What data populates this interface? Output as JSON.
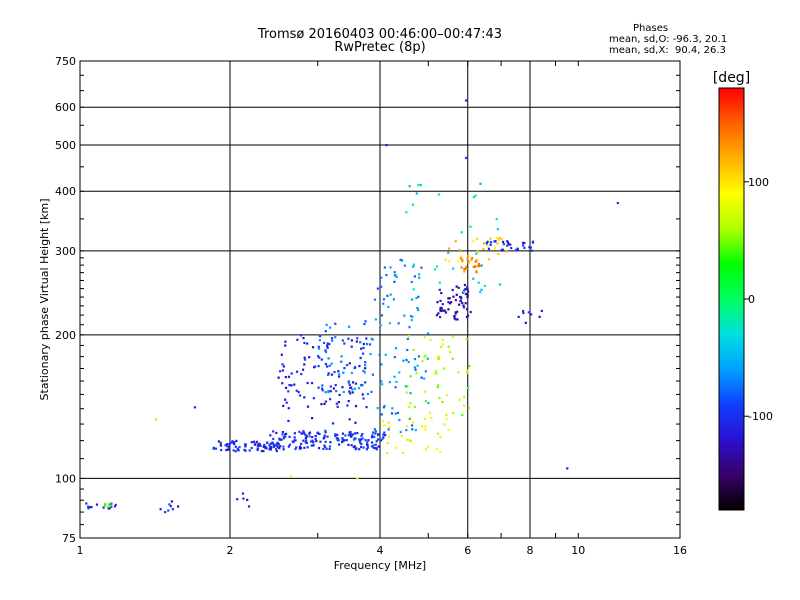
{
  "chart_data": {
    "type": "scatter",
    "title": "Tromsø 20160403 00:46:00–00:47:43",
    "subtitle": "RwPretec (8p)",
    "phase_header": "Phases",
    "phase_stat_o": "mean, sd,O: -96.3, 20.1",
    "phase_stat_x": "mean, sd,X:  90.4, 26.3",
    "xlabel": "Frequency [MHz]",
    "ylabel": "Stationary phase Virtual Height [km]",
    "x_scale": "log",
    "y_scale": "log",
    "xlim": [
      1,
      16
    ],
    "ylim": [
      75,
      750
    ],
    "x_ticks": [
      1,
      2,
      4,
      6,
      8,
      10,
      16
    ],
    "y_ticks": [
      75,
      100,
      200,
      300,
      400,
      500,
      600,
      750
    ],
    "x_grid": [
      1,
      2,
      4,
      6,
      8,
      16
    ],
    "y_grid": [
      100,
      200,
      300,
      400,
      500,
      600,
      750
    ],
    "grid": true,
    "colorbar": {
      "label": "[deg]",
      "range": [
        -180,
        180
      ],
      "ticks": [
        100,
        0,
        -100
      ],
      "colors": [
        "#000000",
        "#3a006a",
        "#2a10d0",
        "#1040ff",
        "#00a0ff",
        "#00e0e0",
        "#00ff60",
        "#00ff00",
        "#b0ff00",
        "#ffff00",
        "#ffb000",
        "#ff6000",
        "#ff0000"
      ]
    },
    "series": [
      {
        "clusters": [
          {
            "x": [
              1.0,
              1.18
            ],
            "y": [
              86,
              89
            ],
            "n": 14,
            "phase": -110
          },
          {
            "x": [
              1.1,
              1.16
            ],
            "y": [
              87,
              89
            ],
            "n": 5,
            "phase": 45
          },
          {
            "x": [
              1.45,
              1.58
            ],
            "y": [
              84,
              92
            ],
            "n": 8,
            "phase": -100
          },
          {
            "x": [
              1.85,
              2.2
            ],
            "y": [
              86,
              93
            ],
            "n": 5,
            "phase": -105
          },
          {
            "x": [
              1.85,
              2.5
            ],
            "y": [
              114,
              120
            ],
            "n": 70,
            "phase": -105
          },
          {
            "x": [
              2.4,
              4.1
            ],
            "y": [
              115,
              126
            ],
            "n": 170,
            "phase": -100
          },
          {
            "x": [
              2.5,
              3.8
            ],
            "y": [
              130,
              200
            ],
            "n": 110,
            "phase": -110
          },
          {
            "x": [
              3.0,
              3.9
            ],
            "y": [
              150,
              215
            ],
            "n": 60,
            "phase": -75
          },
          {
            "x": [
              3.9,
              5.0
            ],
            "y": [
              125,
              290
            ],
            "n": 90,
            "phase": -65
          },
          {
            "x": [
              4.0,
              5.5
            ],
            "y": [
              113,
              135
            ],
            "n": 30,
            "phase": 85
          },
          {
            "x": [
              4.5,
              6.1
            ],
            "y": [
              135,
              200
            ],
            "n": 50,
            "phase": 60
          },
          {
            "x": [
              5.2,
              6.1
            ],
            "y": [
              215,
              255
            ],
            "n": 60,
            "phase": -125
          },
          {
            "x": [
              5.8,
              6.4
            ],
            "y": [
              270,
              290
            ],
            "n": 25,
            "phase": 135
          },
          {
            "x": [
              5.4,
              7.5
            ],
            "y": [
              285,
              320
            ],
            "n": 25,
            "phase": 105
          },
          {
            "x": [
              6.5,
              8.2
            ],
            "y": [
              300,
              315
            ],
            "n": 30,
            "phase": -105
          },
          {
            "x": [
              4.5,
              7.0
            ],
            "y": [
              240,
              420
            ],
            "n": 30,
            "phase": -35
          },
          {
            "x": [
              7.5,
              8.6
            ],
            "y": [
              210,
              225
            ],
            "n": 8,
            "phase": -110
          }
        ],
        "points": [
          {
            "x": 5.95,
            "y": 620,
            "phase": -105
          },
          {
            "x": 4.12,
            "y": 500,
            "phase": -110
          },
          {
            "x": 5.95,
            "y": 470,
            "phase": -90
          },
          {
            "x": 12.0,
            "y": 378,
            "phase": -100
          },
          {
            "x": 9.5,
            "y": 105,
            "phase": -110
          },
          {
            "x": 1.42,
            "y": 133,
            "phase": 55
          },
          {
            "x": 1.7,
            "y": 141,
            "phase": -110
          },
          {
            "x": 3.6,
            "y": 100,
            "phase": 80
          },
          {
            "x": 2.65,
            "y": 101,
            "phase": 95
          }
        ]
      }
    ]
  }
}
